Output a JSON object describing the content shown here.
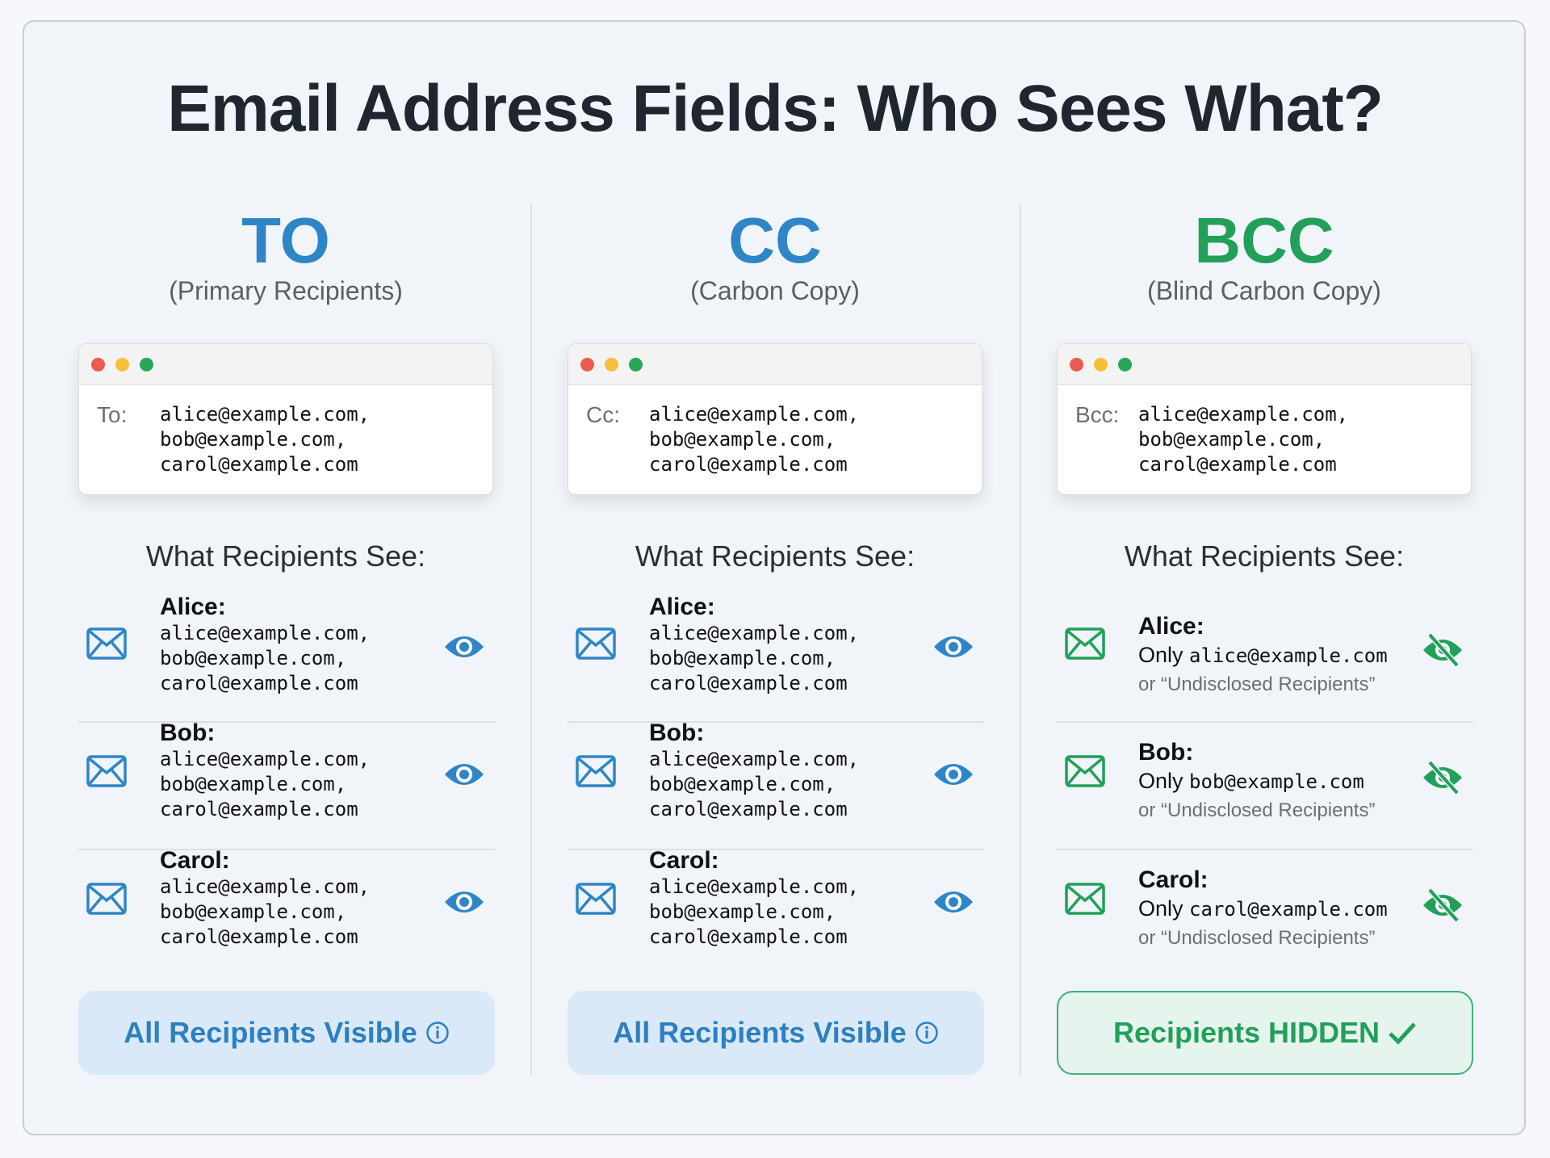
{
  "title": "Email Address Fields: Who Sees What?",
  "colors": {
    "to": "#2e86c8",
    "cc": "#2e86c8",
    "bcc": "#22a05a"
  },
  "columns": [
    {
      "heading": "TO",
      "subheading": "(Primary Recipients)",
      "field_label": "To:",
      "field_emails": [
        "alice@example.com,",
        "bob@example.com,",
        "carol@example.com"
      ],
      "see_heading": "What Recipients See:",
      "recipients": [
        {
          "name": "Alice:",
          "emails": [
            "alice@example.com,",
            "bob@example.com,",
            "carol@example.com"
          ],
          "icon": "eye-icon"
        },
        {
          "name": "Bob:",
          "emails": [
            "alice@example.com,",
            "bob@example.com,",
            "carol@example.com"
          ],
          "icon": "eye-icon"
        },
        {
          "name": "Carol:",
          "emails": [
            "alice@example.com,",
            "bob@example.com,",
            "carol@example.com"
          ],
          "icon": "eye-icon"
        }
      ],
      "status": "All Recipients Visible",
      "status_icon": "info-icon"
    },
    {
      "heading": "CC",
      "subheading": "(Carbon Copy)",
      "field_label": "Cc:",
      "field_emails": [
        "alice@example.com,",
        "bob@example.com,",
        "carol@example.com"
      ],
      "see_heading": "What Recipients See:",
      "recipients": [
        {
          "name": "Alice:",
          "emails": [
            "alice@example.com,",
            "bob@example.com,",
            "carol@example.com"
          ],
          "icon": "eye-icon"
        },
        {
          "name": "Bob:",
          "emails": [
            "alice@example.com,",
            "bob@example.com,",
            "carol@example.com"
          ],
          "icon": "eye-icon"
        },
        {
          "name": "Carol:",
          "emails": [
            "alice@example.com,",
            "bob@example.com,",
            "carol@example.com"
          ],
          "icon": "eye-icon"
        }
      ],
      "status": "All Recipients Visible",
      "status_icon": "info-icon"
    },
    {
      "heading": "BCC",
      "subheading": "(Blind Carbon Copy)",
      "field_label": "Bcc:",
      "field_emails": [
        "alice@example.com,",
        "bob@example.com,",
        "carol@example.com"
      ],
      "see_heading": "What Recipients See:",
      "recipients": [
        {
          "name": "Alice:",
          "only": "Only",
          "email": "alice@example.com",
          "alt": "or “Undisclosed Recipients”",
          "icon": "eye-slash-icon"
        },
        {
          "name": "Bob:",
          "only": "Only",
          "email": "bob@example.com",
          "alt": "or “Undisclosed Recipients”",
          "icon": "eye-slash-icon"
        },
        {
          "name": "Carol:",
          "only": "Only",
          "email": "carol@example.com",
          "alt": "or “Undisclosed Recipients”",
          "icon": "eye-slash-icon"
        }
      ],
      "status": "Recipients HIDDEN",
      "status_icon": "checkmark-icon"
    }
  ]
}
